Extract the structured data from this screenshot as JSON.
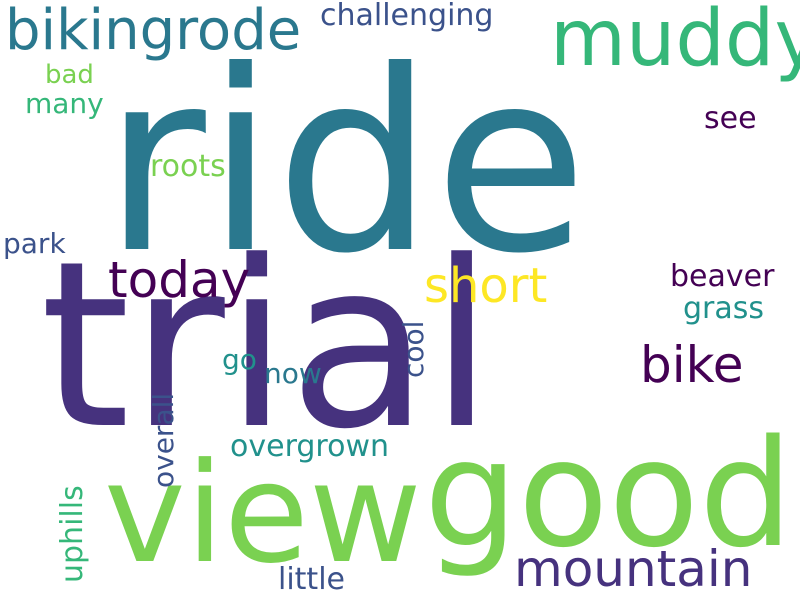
{
  "wordcloud": {
    "words": [
      {
        "text": "ride",
        "color": "#2a788e"
      },
      {
        "text": "trial",
        "color": "#46327e"
      },
      {
        "text": "view",
        "color": "#7ad151"
      },
      {
        "text": "good",
        "color": "#7ad151"
      },
      {
        "text": "muddy",
        "color": "#35b779"
      },
      {
        "text": "bikingrode",
        "color": "#2a788e"
      },
      {
        "text": "challenging",
        "color": "#3b528b"
      },
      {
        "text": "bad",
        "color": "#7ad151"
      },
      {
        "text": "many",
        "color": "#35b779"
      },
      {
        "text": "see",
        "color": "#440154"
      },
      {
        "text": "roots",
        "color": "#7ad151"
      },
      {
        "text": "park",
        "color": "#3b528b"
      },
      {
        "text": "today",
        "color": "#440154"
      },
      {
        "text": "short",
        "color": "#fde725"
      },
      {
        "text": "beaver",
        "color": "#440154"
      },
      {
        "text": "grass",
        "color": "#21918c"
      },
      {
        "text": "bike",
        "color": "#440154"
      },
      {
        "text": "cool",
        "color": "#3b528b"
      },
      {
        "text": "go",
        "color": "#21918c"
      },
      {
        "text": "now",
        "color": "#2a788e"
      },
      {
        "text": "overall",
        "color": "#3b528b"
      },
      {
        "text": "overgrown",
        "color": "#21918c"
      },
      {
        "text": "uphills",
        "color": "#35b779"
      },
      {
        "text": "mountain",
        "color": "#46327e"
      },
      {
        "text": "little",
        "color": "#3b528b"
      }
    ]
  }
}
